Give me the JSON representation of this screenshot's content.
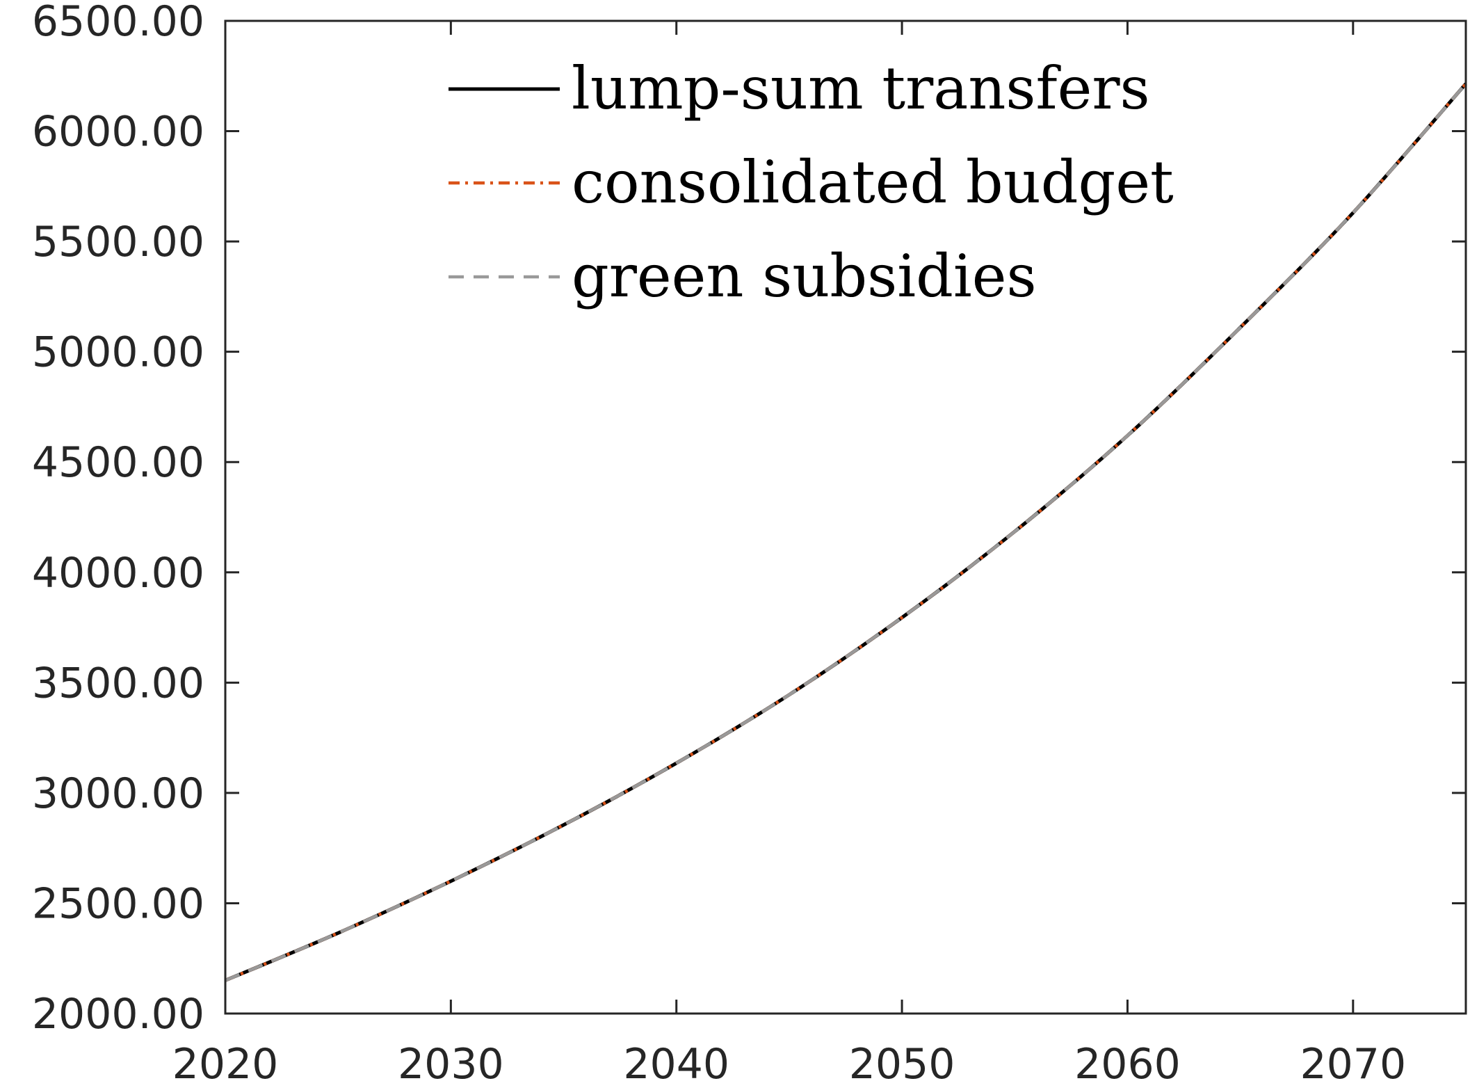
{
  "chart_data": {
    "type": "line",
    "title": "",
    "xlabel": "",
    "ylabel": "",
    "xlim": [
      2020,
      2075
    ],
    "ylim": [
      2000,
      6500
    ],
    "x_ticks": [
      "2020",
      "2030",
      "2040",
      "2050",
      "2060",
      "2070"
    ],
    "y_ticks": [
      "2000.00",
      "2500.00",
      "3000.00",
      "3500.00",
      "4000.00",
      "4500.00",
      "5000.00",
      "5500.00",
      "6000.00",
      "6500.00"
    ],
    "grid": false,
    "legend_position": "top-center",
    "x": [
      2020,
      2025,
      2030,
      2035,
      2040,
      2045,
      2050,
      2055,
      2060,
      2065,
      2070,
      2075
    ],
    "series": [
      {
        "name": "lump-sum transfers",
        "color": "#000000",
        "style": "solid",
        "values": [
          2150,
          2365,
          2600,
          2855,
          3135,
          3445,
          3795,
          4185,
          4620,
          5110,
          5630,
          6215
        ]
      },
      {
        "name": "consolidated budget",
        "color": "#D95319",
        "style": "dash-dot",
        "values": [
          2150,
          2365,
          2600,
          2855,
          3135,
          3445,
          3795,
          4185,
          4620,
          5110,
          5630,
          6215
        ]
      },
      {
        "name": "green subsidies",
        "color": "#999999",
        "style": "dashed",
        "values": [
          2150,
          2365,
          2600,
          2855,
          3135,
          3445,
          3795,
          4185,
          4620,
          5110,
          5630,
          6215
        ]
      }
    ]
  }
}
